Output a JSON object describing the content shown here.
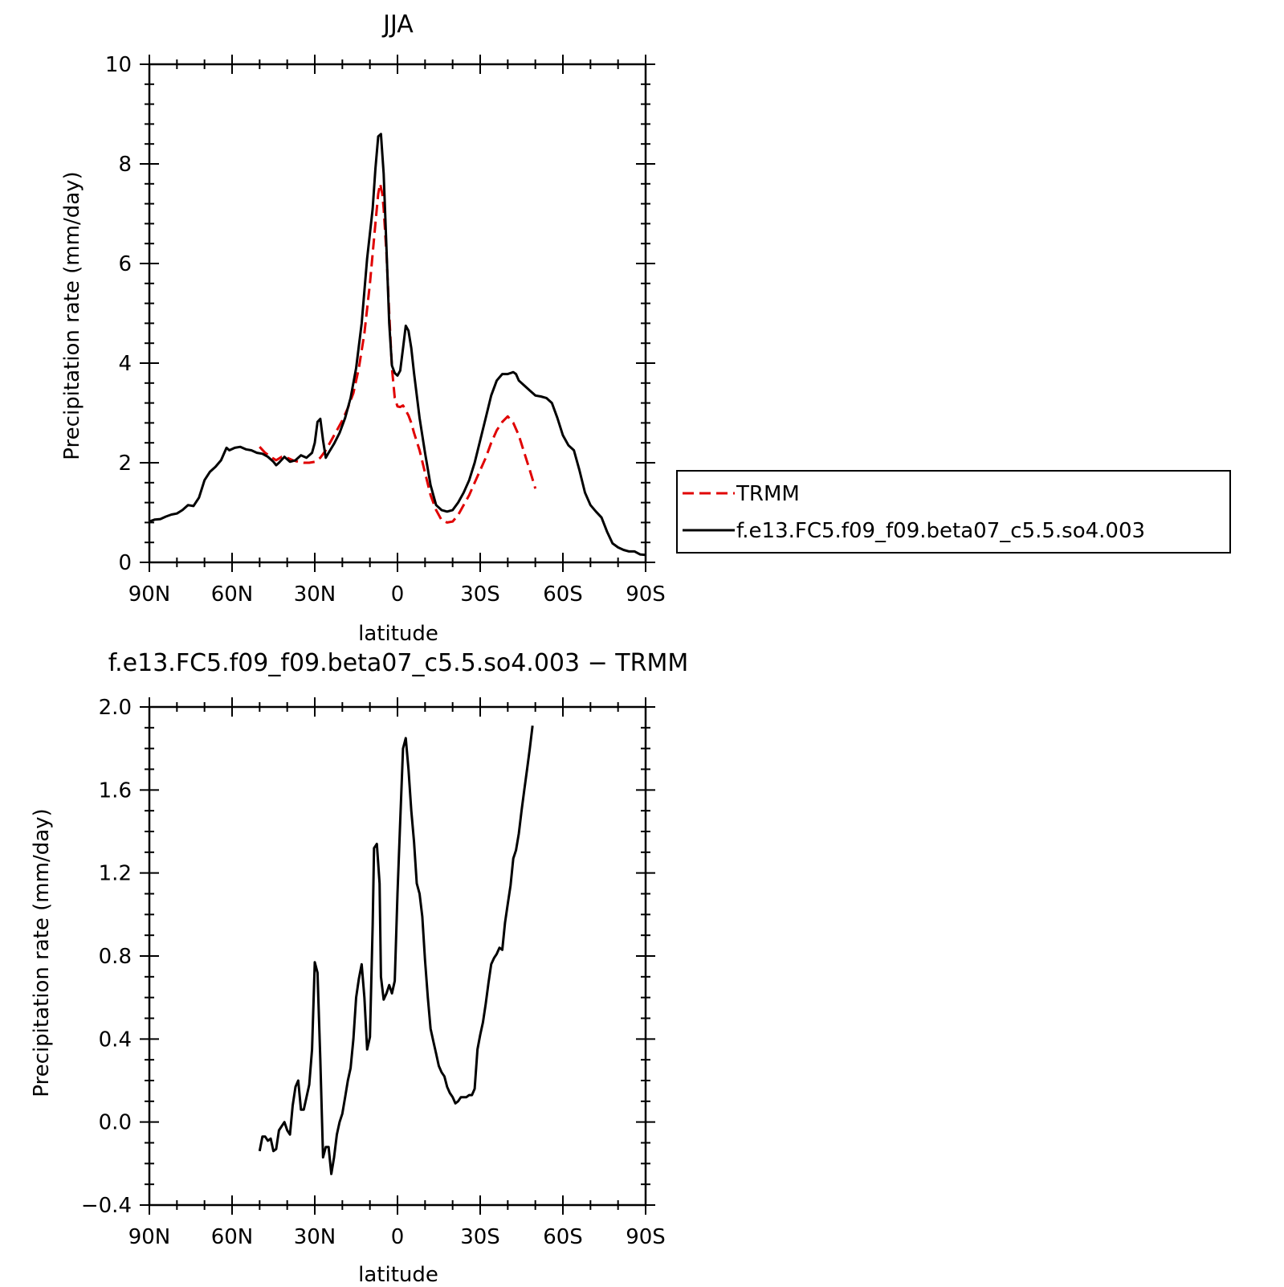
{
  "chart_data": [
    {
      "type": "line",
      "title": "JJA",
      "xlabel": "latitude",
      "ylabel": "Precipitation rate (mm/day)",
      "xlim": [
        90,
        -90
      ],
      "ylim": [
        0,
        10
      ],
      "x_ticks": [
        90,
        60,
        30,
        0,
        -30,
        -60,
        -90
      ],
      "x_tick_labels": [
        "90N",
        "60N",
        "30N",
        "0",
        "30S",
        "60S",
        "90S"
      ],
      "y_ticks": [
        0,
        2,
        4,
        6,
        8,
        10
      ],
      "y_tick_labels": [
        "0",
        "2",
        "4",
        "6",
        "8",
        "10"
      ],
      "legend_position": "right",
      "series": [
        {
          "name": "TRMM",
          "color": "#e00000",
          "dash": true,
          "points": [
            [
              50,
              2.32
            ],
            [
              48,
              2.2
            ],
            [
              46,
              2.12
            ],
            [
              44,
              2.05
            ],
            [
              42,
              2.12
            ],
            [
              40,
              2.1
            ],
            [
              38,
              2.05
            ],
            [
              36,
              2.02
            ],
            [
              34,
              2.0
            ],
            [
              32,
              2.0
            ],
            [
              30,
              2.02
            ],
            [
              28,
              2.1
            ],
            [
              26,
              2.25
            ],
            [
              24,
              2.45
            ],
            [
              22,
              2.65
            ],
            [
              20,
              2.85
            ],
            [
              18,
              3.1
            ],
            [
              16,
              3.4
            ],
            [
              14,
              3.9
            ],
            [
              12,
              4.6
            ],
            [
              10,
              5.6
            ],
            [
              8,
              6.8
            ],
            [
              7,
              7.4
            ],
            [
              6.3,
              7.6
            ],
            [
              5.5,
              7.4
            ],
            [
              5,
              7.1
            ],
            [
              4,
              6.2
            ],
            [
              3,
              5.0
            ],
            [
              2,
              3.9
            ],
            [
              1,
              3.3
            ],
            [
              0,
              3.13
            ],
            [
              -1,
              3.12
            ],
            [
              -2,
              3.15
            ],
            [
              -3,
              3.05
            ],
            [
              -4,
              2.95
            ],
            [
              -5,
              2.8
            ],
            [
              -6,
              2.6
            ],
            [
              -8,
              2.25
            ],
            [
              -10,
              1.8
            ],
            [
              -12,
              1.35
            ],
            [
              -14,
              1.05
            ],
            [
              -16,
              0.85
            ],
            [
              -18,
              0.8
            ],
            [
              -20,
              0.82
            ],
            [
              -22,
              0.95
            ],
            [
              -24,
              1.15
            ],
            [
              -26,
              1.35
            ],
            [
              -28,
              1.6
            ],
            [
              -30,
              1.85
            ],
            [
              -32,
              2.1
            ],
            [
              -34,
              2.4
            ],
            [
              -36,
              2.65
            ],
            [
              -38,
              2.82
            ],
            [
              -40,
              2.93
            ],
            [
              -42,
              2.8
            ],
            [
              -44,
              2.55
            ],
            [
              -46,
              2.2
            ],
            [
              -48,
              1.85
            ],
            [
              -50,
              1.48
            ]
          ]
        },
        {
          "name": "f.e13.FC5.f09_f09.beta07_c5.5.so4.003",
          "color": "#000000",
          "dash": false,
          "points": [
            [
              90,
              0.82
            ],
            [
              88,
              0.86
            ],
            [
              86,
              0.87
            ],
            [
              84,
              0.92
            ],
            [
              82,
              0.96
            ],
            [
              80,
              0.98
            ],
            [
              78,
              1.05
            ],
            [
              76,
              1.15
            ],
            [
              74,
              1.13
            ],
            [
              72,
              1.3
            ],
            [
              70,
              1.65
            ],
            [
              68,
              1.82
            ],
            [
              66,
              1.92
            ],
            [
              64,
              2.05
            ],
            [
              62,
              2.3
            ],
            [
              61,
              2.25
            ],
            [
              59,
              2.3
            ],
            [
              57,
              2.32
            ],
            [
              55,
              2.27
            ],
            [
              53,
              2.25
            ],
            [
              51,
              2.2
            ],
            [
              49,
              2.18
            ],
            [
              47,
              2.12
            ],
            [
              45,
              2.02
            ],
            [
              44,
              1.95
            ],
            [
              43,
              2.0
            ],
            [
              41,
              2.12
            ],
            [
              39,
              2.02
            ],
            [
              37,
              2.05
            ],
            [
              35,
              2.15
            ],
            [
              33,
              2.1
            ],
            [
              31,
              2.2
            ],
            [
              30,
              2.4
            ],
            [
              29,
              2.82
            ],
            [
              28,
              2.88
            ],
            [
              27,
              2.45
            ],
            [
              26,
              2.1
            ],
            [
              25,
              2.2
            ],
            [
              23,
              2.38
            ],
            [
              21,
              2.6
            ],
            [
              19,
              2.9
            ],
            [
              17,
              3.3
            ],
            [
              15,
              3.9
            ],
            [
              13,
              4.8
            ],
            [
              11,
              6.1
            ],
            [
              9,
              7.1
            ],
            [
              8,
              7.9
            ],
            [
              7,
              8.55
            ],
            [
              6,
              8.6
            ],
            [
              5,
              7.8
            ],
            [
              4,
              6.3
            ],
            [
              3,
              4.8
            ],
            [
              2,
              3.95
            ],
            [
              1,
              3.8
            ],
            [
              0,
              3.75
            ],
            [
              -1,
              3.85
            ],
            [
              -2,
              4.3
            ],
            [
              -3,
              4.75
            ],
            [
              -4,
              4.65
            ],
            [
              -5,
              4.3
            ],
            [
              -6,
              3.8
            ],
            [
              -8,
              2.9
            ],
            [
              -10,
              2.2
            ],
            [
              -12,
              1.55
            ],
            [
              -14,
              1.15
            ],
            [
              -16,
              1.05
            ],
            [
              -18,
              1.02
            ],
            [
              -20,
              1.05
            ],
            [
              -22,
              1.2
            ],
            [
              -24,
              1.4
            ],
            [
              -26,
              1.65
            ],
            [
              -28,
              2.0
            ],
            [
              -30,
              2.45
            ],
            [
              -32,
              2.9
            ],
            [
              -34,
              3.35
            ],
            [
              -36,
              3.65
            ],
            [
              -38,
              3.78
            ],
            [
              -40,
              3.78
            ],
            [
              -42,
              3.82
            ],
            [
              -43,
              3.78
            ],
            [
              -44,
              3.65
            ],
            [
              -46,
              3.55
            ],
            [
              -48,
              3.45
            ],
            [
              -50,
              3.35
            ],
            [
              -52,
              3.33
            ],
            [
              -54,
              3.3
            ],
            [
              -56,
              3.2
            ],
            [
              -58,
              2.9
            ],
            [
              -60,
              2.55
            ],
            [
              -62,
              2.35
            ],
            [
              -64,
              2.25
            ],
            [
              -66,
              1.85
            ],
            [
              -68,
              1.4
            ],
            [
              -70,
              1.15
            ],
            [
              -72,
              1.02
            ],
            [
              -74,
              0.9
            ],
            [
              -76,
              0.62
            ],
            [
              -78,
              0.38
            ],
            [
              -80,
              0.3
            ],
            [
              -82,
              0.25
            ],
            [
              -84,
              0.22
            ],
            [
              -86,
              0.22
            ],
            [
              -88,
              0.16
            ],
            [
              -90,
              0.15
            ]
          ]
        }
      ]
    },
    {
      "type": "line",
      "title": "f.e13.FC5.f09_f09.beta07_c5.5.so4.003 − TRMM",
      "xlabel": "latitude",
      "ylabel": "Precipitation rate (mm/day)",
      "xlim": [
        90,
        -90
      ],
      "ylim": [
        -0.4,
        2.0
      ],
      "x_ticks": [
        90,
        60,
        30,
        0,
        -30,
        -60,
        -90
      ],
      "x_tick_labels": [
        "90N",
        "60N",
        "30N",
        "0",
        "30S",
        "60S",
        "90S"
      ],
      "y_ticks": [
        -0.4,
        0.0,
        0.4,
        0.8,
        1.2,
        1.6,
        2.0
      ],
      "y_tick_labels": [
        "−0.4",
        "0.0",
        "0.4",
        "0.8",
        "1.2",
        "1.6",
        "2.0"
      ],
      "series": [
        {
          "color": "#000000",
          "dash": false,
          "points": [
            [
              50,
              -0.14
            ],
            [
              49,
              -0.07
            ],
            [
              48,
              -0.07
            ],
            [
              47,
              -0.09
            ],
            [
              46,
              -0.08
            ],
            [
              45,
              -0.14
            ],
            [
              44,
              -0.13
            ],
            [
              43,
              -0.04
            ],
            [
              42,
              -0.02
            ],
            [
              41,
              0.0
            ],
            [
              40,
              -0.04
            ],
            [
              39,
              -0.06
            ],
            [
              38,
              0.08
            ],
            [
              37,
              0.17
            ],
            [
              36,
              0.2
            ],
            [
              35,
              0.06
            ],
            [
              34,
              0.06
            ],
            [
              33,
              0.12
            ],
            [
              32,
              0.18
            ],
            [
              31,
              0.35
            ],
            [
              30,
              0.77
            ],
            [
              29,
              0.72
            ],
            [
              28,
              0.3
            ],
            [
              27,
              -0.17
            ],
            [
              26,
              -0.12
            ],
            [
              25,
              -0.12
            ],
            [
              24,
              -0.25
            ],
            [
              23,
              -0.17
            ],
            [
              22,
              -0.06
            ],
            [
              21,
              0.0
            ],
            [
              20,
              0.04
            ],
            [
              19,
              0.12
            ],
            [
              18,
              0.2
            ],
            [
              17,
              0.26
            ],
            [
              16,
              0.4
            ],
            [
              15,
              0.6
            ],
            [
              14,
              0.69
            ],
            [
              13,
              0.76
            ],
            [
              12,
              0.6
            ],
            [
              11,
              0.35
            ],
            [
              10,
              0.41
            ],
            [
              9,
              0.95
            ],
            [
              8.5,
              1.32
            ],
            [
              7.5,
              1.34
            ],
            [
              6.5,
              1.15
            ],
            [
              6,
              0.7
            ],
            [
              5,
              0.59
            ],
            [
              4,
              0.62
            ],
            [
              3,
              0.66
            ],
            [
              2,
              0.62
            ],
            [
              1,
              0.68
            ],
            [
              0,
              1.1
            ],
            [
              -1,
              1.45
            ],
            [
              -2,
              1.8
            ],
            [
              -3,
              1.85
            ],
            [
              -4,
              1.7
            ],
            [
              -5,
              1.5
            ],
            [
              -6,
              1.35
            ],
            [
              -7,
              1.15
            ],
            [
              -8,
              1.1
            ],
            [
              -9,
              0.99
            ],
            [
              -10,
              0.78
            ],
            [
              -11,
              0.6
            ],
            [
              -12,
              0.45
            ],
            [
              -13,
              0.39
            ],
            [
              -14,
              0.33
            ],
            [
              -15,
              0.27
            ],
            [
              -16,
              0.24
            ],
            [
              -17,
              0.22
            ],
            [
              -18,
              0.17
            ],
            [
              -19,
              0.14
            ],
            [
              -20,
              0.12
            ],
            [
              -21,
              0.09
            ],
            [
              -22,
              0.1
            ],
            [
              -23,
              0.12
            ],
            [
              -24,
              0.12
            ],
            [
              -25,
              0.12
            ],
            [
              -26,
              0.13
            ],
            [
              -27,
              0.13
            ],
            [
              -28,
              0.16
            ],
            [
              -29,
              0.35
            ],
            [
              -30,
              0.42
            ],
            [
              -31,
              0.48
            ],
            [
              -32,
              0.57
            ],
            [
              -33,
              0.67
            ],
            [
              -34,
              0.76
            ],
            [
              -35,
              0.79
            ],
            [
              -36,
              0.81
            ],
            [
              -37,
              0.84
            ],
            [
              -38,
              0.83
            ],
            [
              -39,
              0.96
            ],
            [
              -40,
              1.05
            ],
            [
              -41,
              1.14
            ],
            [
              -42,
              1.27
            ],
            [
              -43,
              1.31
            ],
            [
              -44,
              1.39
            ],
            [
              -45,
              1.5
            ],
            [
              -46,
              1.6
            ],
            [
              -47,
              1.7
            ],
            [
              -48,
              1.8
            ],
            [
              -49,
              1.91
            ]
          ]
        }
      ]
    }
  ]
}
